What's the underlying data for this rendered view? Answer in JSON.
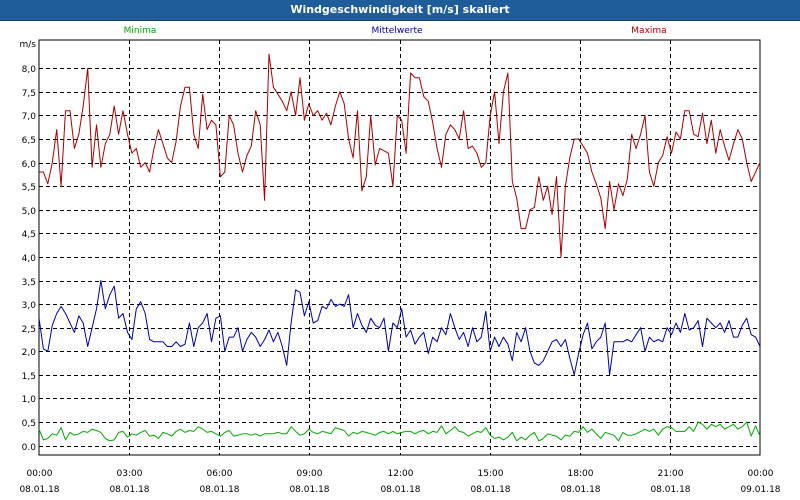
{
  "window": {
    "title": "Windgeschwindigkeit [m/s] skaliert"
  },
  "chart_data": {
    "type": "line",
    "title": "Windgeschwindigkeit [m/s] skaliert",
    "ylabel": "m/s",
    "ylim": [
      -0.2,
      8.6
    ],
    "yticks": [
      "0.0",
      "0,5",
      "1,0",
      "1,5",
      "2,0",
      "2,5",
      "3,0",
      "3,5",
      "4,0",
      "4,5",
      "5,0",
      "5,5",
      "6,0",
      "6,5",
      "7,0",
      "7,5",
      "8,0"
    ],
    "xlim": [
      0,
      24
    ],
    "xticks": [
      {
        "time": "00:00",
        "date": "08.01.18"
      },
      {
        "time": "03:00",
        "date": "08.01.18"
      },
      {
        "time": "06:00",
        "date": "08.01.18"
      },
      {
        "time": "09:00",
        "date": "08.01.18"
      },
      {
        "time": "12:00",
        "date": "08.01.18"
      },
      {
        "time": "15:00",
        "date": "08.01.18"
      },
      {
        "time": "18:00",
        "date": "08.01.18"
      },
      {
        "time": "21:00",
        "date": "08.01.18"
      },
      {
        "time": "00:00",
        "date": "09.01.18"
      }
    ],
    "grid": true,
    "legend": "top",
    "series": [
      {
        "name": "Minima",
        "color": "#00aa00",
        "values": [
          0.35,
          0.12,
          0.15,
          0.25,
          0.22,
          0.38,
          0.12,
          0.28,
          0.22,
          0.25,
          0.3,
          0.28,
          0.35,
          0.32,
          0.28,
          0.15,
          0.1,
          0.12,
          0.28,
          0.3,
          0.18,
          0.25,
          0.22,
          0.28,
          0.32,
          0.2,
          0.22,
          0.15,
          0.28,
          0.25,
          0.2,
          0.3,
          0.35,
          0.28,
          0.32,
          0.3,
          0.4,
          0.35,
          0.28,
          0.3,
          0.25,
          0.2,
          0.28,
          0.32,
          0.2,
          0.22,
          0.25,
          0.25,
          0.22,
          0.25,
          0.2,
          0.25,
          0.25,
          0.25,
          0.28,
          0.25,
          0.25,
          0.4,
          0.3,
          0.22,
          0.25,
          0.35,
          0.28,
          0.25,
          0.3,
          0.28,
          0.25,
          0.38,
          0.35,
          0.32,
          0.2,
          0.28,
          0.25,
          0.3,
          0.28,
          0.25,
          0.22,
          0.28,
          0.3,
          0.25,
          0.3,
          0.25,
          0.28,
          0.3,
          0.3,
          0.25,
          0.3,
          0.32,
          0.25,
          0.3,
          0.28,
          0.42,
          0.25,
          0.32,
          0.4,
          0.3,
          0.28,
          0.2,
          0.25,
          0.3,
          0.28,
          0.38,
          0.22,
          0.15,
          0.18,
          0.12,
          0.18,
          0.28,
          0.1,
          0.18,
          0.12,
          0.22,
          0.28,
          0.1,
          0.15,
          0.25,
          0.22,
          0.2,
          0.12,
          0.22,
          0.2,
          0.3,
          0.28,
          0.4,
          0.28,
          0.35,
          0.25,
          0.15,
          0.28,
          0.25,
          0.22,
          0.1,
          0.28,
          0.22,
          0.22,
          0.25,
          0.3,
          0.35,
          0.3,
          0.35,
          0.22,
          0.35,
          0.4,
          0.38,
          0.3,
          0.3,
          0.3,
          0.4,
          0.3,
          0.5,
          0.45,
          0.35,
          0.45,
          0.4,
          0.45,
          0.35,
          0.4,
          0.45,
          0.35,
          0.4,
          0.5,
          0.2,
          0.42,
          0.2
        ]
      },
      {
        "name": "Mittelwerte",
        "color": "#0000aa",
        "values": [
          2.7,
          2.05,
          2.0,
          2.55,
          2.8,
          2.95,
          2.8,
          2.6,
          2.4,
          2.75,
          2.6,
          2.1,
          2.5,
          2.9,
          3.5,
          2.9,
          3.2,
          3.38,
          2.7,
          2.8,
          2.4,
          2.25,
          2.9,
          3.05,
          2.8,
          2.25,
          2.2,
          2.2,
          2.2,
          2.1,
          2.1,
          2.2,
          2.1,
          2.15,
          2.6,
          2.1,
          2.5,
          2.6,
          2.8,
          2.2,
          2.7,
          2.75,
          2.0,
          2.3,
          2.3,
          2.5,
          2.0,
          2.25,
          2.4,
          2.3,
          2.1,
          2.25,
          2.45,
          2.2,
          2.4,
          2.1,
          1.7,
          2.6,
          3.3,
          3.25,
          2.75,
          3.05,
          2.6,
          2.65,
          2.95,
          2.9,
          3.1,
          2.95,
          3.0,
          2.95,
          3.2,
          2.5,
          2.8,
          2.55,
          2.4,
          2.7,
          2.55,
          2.5,
          2.7,
          2.0,
          2.6,
          2.5,
          2.9,
          2.3,
          2.45,
          2.15,
          2.3,
          2.4,
          1.95,
          2.3,
          2.2,
          2.5,
          2.35,
          2.8,
          2.5,
          2.25,
          2.4,
          2.1,
          2.5,
          2.2,
          2.3,
          2.85,
          2.0,
          2.3,
          2.1,
          2.3,
          2.15,
          1.8,
          2.4,
          2.2,
          2.5,
          2.0,
          1.75,
          1.7,
          1.8,
          2.0,
          2.2,
          2.25,
          2.1,
          2.25,
          1.85,
          1.5,
          1.95,
          2.35,
          2.6,
          2.05,
          2.2,
          2.3,
          2.6,
          1.5,
          2.2,
          2.2,
          2.2,
          2.25,
          2.2,
          2.35,
          2.5,
          2.0,
          2.3,
          2.2,
          2.25,
          2.2,
          2.5,
          2.35,
          2.6,
          2.4,
          2.8,
          2.45,
          2.5,
          2.65,
          2.1,
          2.7,
          2.6,
          2.5,
          2.6,
          2.4,
          2.65,
          2.3,
          2.3,
          2.55,
          2.7,
          2.35,
          2.3,
          2.1
        ]
      },
      {
        "name": "Maxima",
        "color": "#aa0000",
        "values": [
          5.8,
          5.8,
          5.55,
          6.0,
          6.7,
          5.5,
          7.1,
          7.1,
          6.3,
          6.6,
          7.2,
          8.0,
          5.9,
          6.8,
          5.9,
          6.4,
          6.6,
          7.2,
          6.6,
          7.1,
          6.6,
          6.2,
          6.3,
          5.9,
          6.0,
          5.8,
          6.3,
          6.7,
          6.4,
          6.1,
          6.0,
          6.45,
          7.2,
          7.6,
          7.6,
          6.6,
          6.3,
          7.45,
          6.7,
          6.9,
          6.8,
          5.7,
          5.8,
          7.0,
          6.8,
          6.2,
          5.8,
          6.15,
          6.35,
          7.1,
          6.8,
          5.2,
          8.3,
          7.6,
          7.45,
          7.3,
          7.1,
          7.5,
          7.0,
          7.8,
          6.9,
          7.25,
          7.0,
          7.1,
          6.9,
          7.05,
          6.8,
          7.2,
          7.5,
          7.25,
          6.5,
          6.1,
          7.1,
          5.4,
          5.7,
          7.0,
          5.95,
          6.3,
          6.25,
          6.2,
          5.5,
          7.0,
          6.9,
          6.2,
          7.9,
          7.8,
          7.8,
          7.4,
          7.3,
          6.85,
          6.3,
          5.9,
          6.6,
          6.8,
          6.7,
          6.5,
          7.1,
          6.3,
          6.35,
          6.2,
          5.9,
          6.0,
          7.0,
          7.5,
          6.4,
          7.5,
          7.9,
          5.6,
          5.25,
          4.6,
          4.6,
          5.0,
          5.05,
          5.7,
          5.2,
          5.5,
          4.9,
          5.7,
          4.0,
          5.5,
          6.1,
          6.5,
          6.5,
          6.35,
          6.2,
          5.8,
          5.55,
          5.25,
          4.6,
          5.6,
          5.0,
          5.55,
          5.3,
          5.65,
          6.6,
          6.3,
          6.6,
          7.0,
          5.8,
          5.5,
          6.0,
          6.15,
          6.55,
          6.2,
          6.65,
          6.5,
          7.1,
          7.1,
          6.6,
          6.55,
          7.05,
          6.4,
          6.9,
          6.2,
          6.7,
          6.35,
          6.05,
          6.4,
          6.7,
          6.5,
          6.0,
          5.6,
          5.8,
          6.0
        ]
      }
    ]
  }
}
